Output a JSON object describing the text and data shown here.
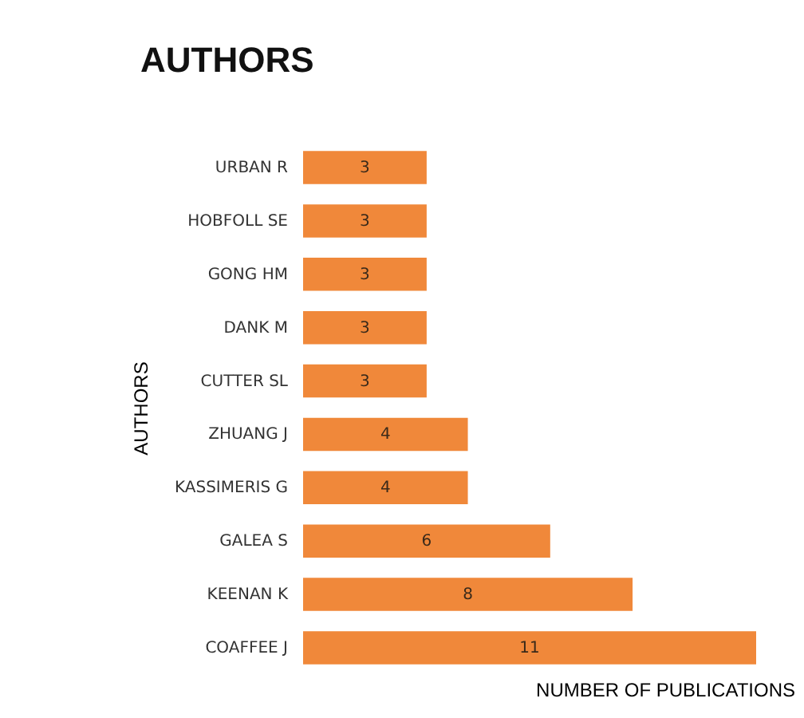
{
  "chart_data": {
    "type": "bar",
    "orientation": "horizontal",
    "title": "AUTHORS",
    "xlabel": "NUMBER OF PUBLICATIONS",
    "ylabel": "AUTHORS",
    "categories": [
      "URBAN R",
      "HOBFOLL SE",
      "GONG HM",
      "DANK M",
      "CUTTER SL",
      "ZHUANG J",
      "KASSIMERIS G",
      "GALEA S",
      "KEENAN K",
      "COAFFEE J"
    ],
    "values": [
      3,
      3,
      3,
      3,
      3,
      4,
      4,
      6,
      8,
      11
    ],
    "color": "#f0883a",
    "data_labels": true
  }
}
